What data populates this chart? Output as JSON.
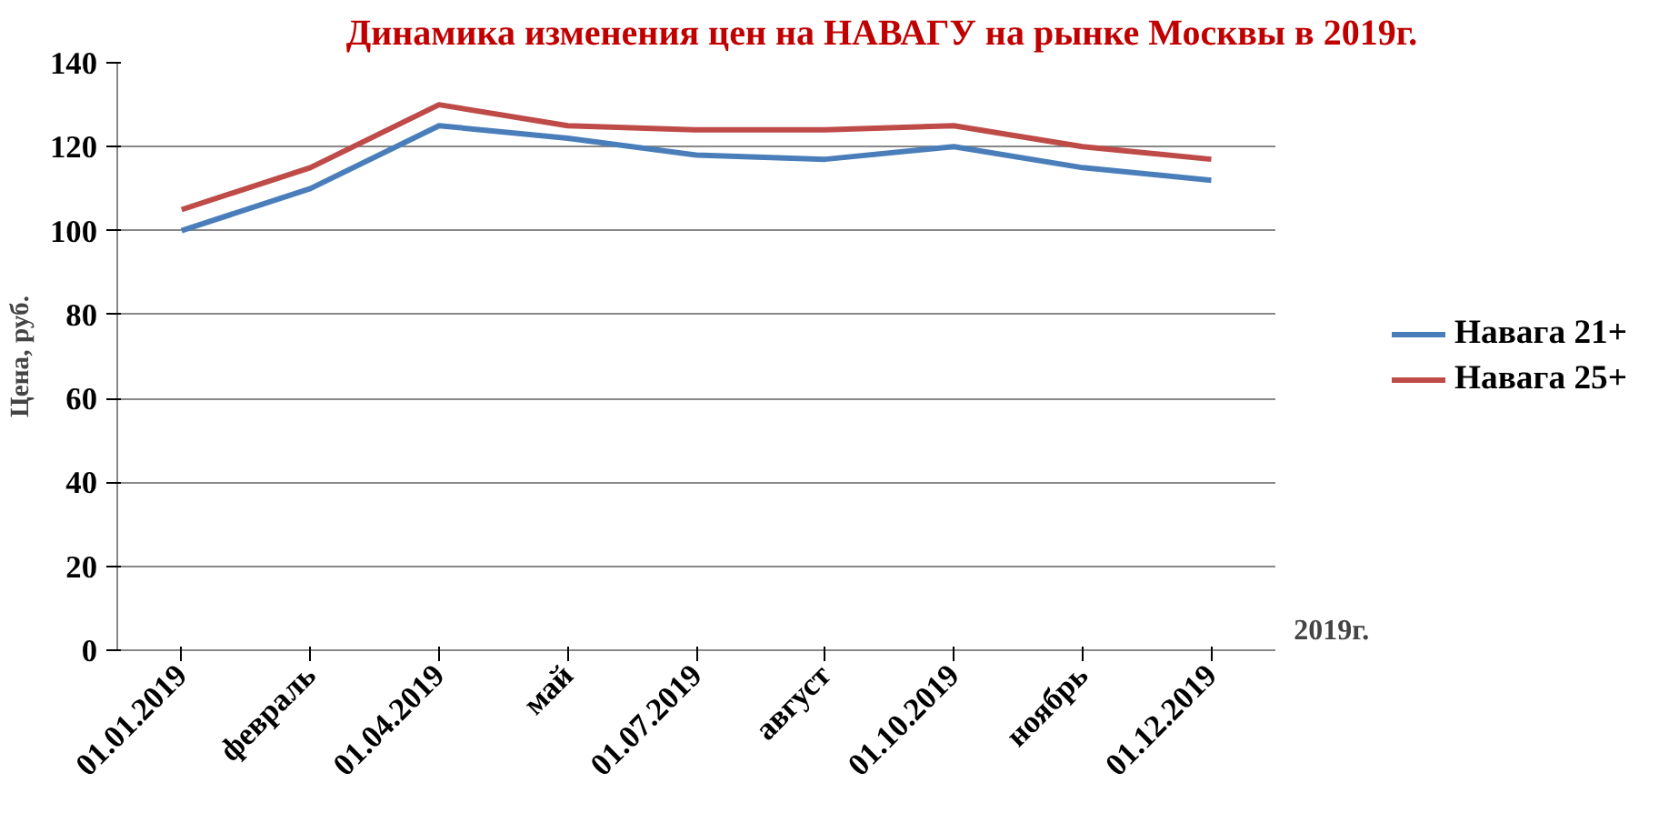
{
  "chart_data": {
    "type": "line",
    "title": "Динамика изменения цен на НАВАГУ на рынке Москвы в 2019г.",
    "xlabel": "2019г.",
    "ylabel": "Цена, руб.",
    "categories": [
      "01.01.2019",
      "февраль",
      "01.04.2019",
      "май",
      "01.07.2019",
      "август",
      "01.10.2019",
      "ноябрь",
      "01.12.2019"
    ],
    "series": [
      {
        "name": "Навага 21+",
        "color": "#4a7ebb",
        "values": [
          100,
          110,
          125,
          122,
          118,
          117,
          120,
          115,
          112
        ]
      },
      {
        "name": "Навага 25+",
        "color": "#be4b48",
        "values": [
          105,
          115,
          130,
          125,
          124,
          124,
          125,
          120,
          117
        ]
      }
    ],
    "ylim": [
      0,
      140
    ],
    "yticks": [
      0,
      20,
      40,
      60,
      80,
      100,
      120,
      140
    ],
    "grid": "y",
    "legend": "right",
    "marker": "none",
    "line_style": "solid"
  }
}
